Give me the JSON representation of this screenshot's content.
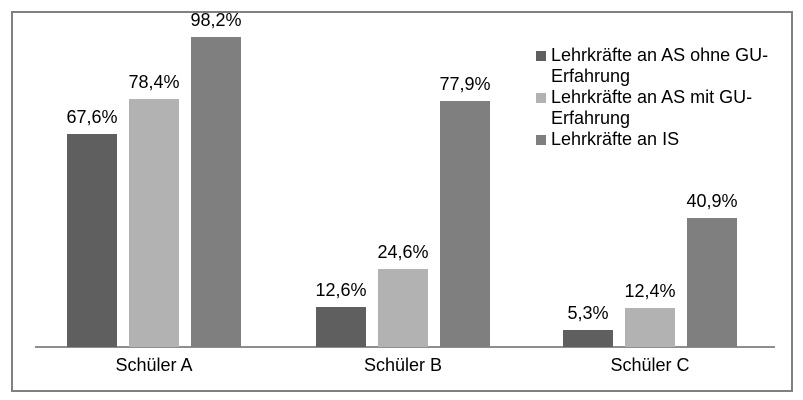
{
  "chart_data": {
    "type": "bar",
    "title": "",
    "categories": [
      "Schüler A",
      "Schüler B",
      "Schüler C"
    ],
    "series": [
      {
        "name": "Lehrkräfte an AS ohne GU-Erfahrung",
        "color": "#5F5F5F",
        "values": [
          67.6,
          12.6,
          5.3
        ],
        "labels": [
          "67,6%",
          "12,6%",
          "5,3%"
        ]
      },
      {
        "name": "Lehrkräfte an AS mit GU-Erfahrung",
        "color": "#B2B2B2",
        "values": [
          78.4,
          24.6,
          12.4
        ],
        "labels": [
          "78,4%",
          "24,6%",
          "12,4%"
        ]
      },
      {
        "name": "Lehrkräfte an IS",
        "color": "#7F7F7F",
        "values": [
          98.2,
          77.9,
          40.9
        ],
        "labels": [
          "98,2%",
          "77,9%",
          "40,9%"
        ]
      }
    ],
    "legend": {
      "position": "right",
      "entries": [
        {
          "label": "Lehrkräfte an AS ohne GU-\nErfahrung",
          "color": "#5F5F5F"
        },
        {
          "label": "Lehrkräfte an AS mit GU-\nErfahrung",
          "color": "#B2B2B2"
        },
        {
          "label": "Lehrkräfte an IS",
          "color": "#7F7F7F"
        }
      ]
    },
    "xlabel": "",
    "ylabel": "",
    "ylim": [
      0,
      100
    ],
    "grid": false,
    "value_suffix": "%",
    "decimal_separator": ",",
    "axis_color": "#8E8E8E",
    "frame_color": "#808080"
  }
}
